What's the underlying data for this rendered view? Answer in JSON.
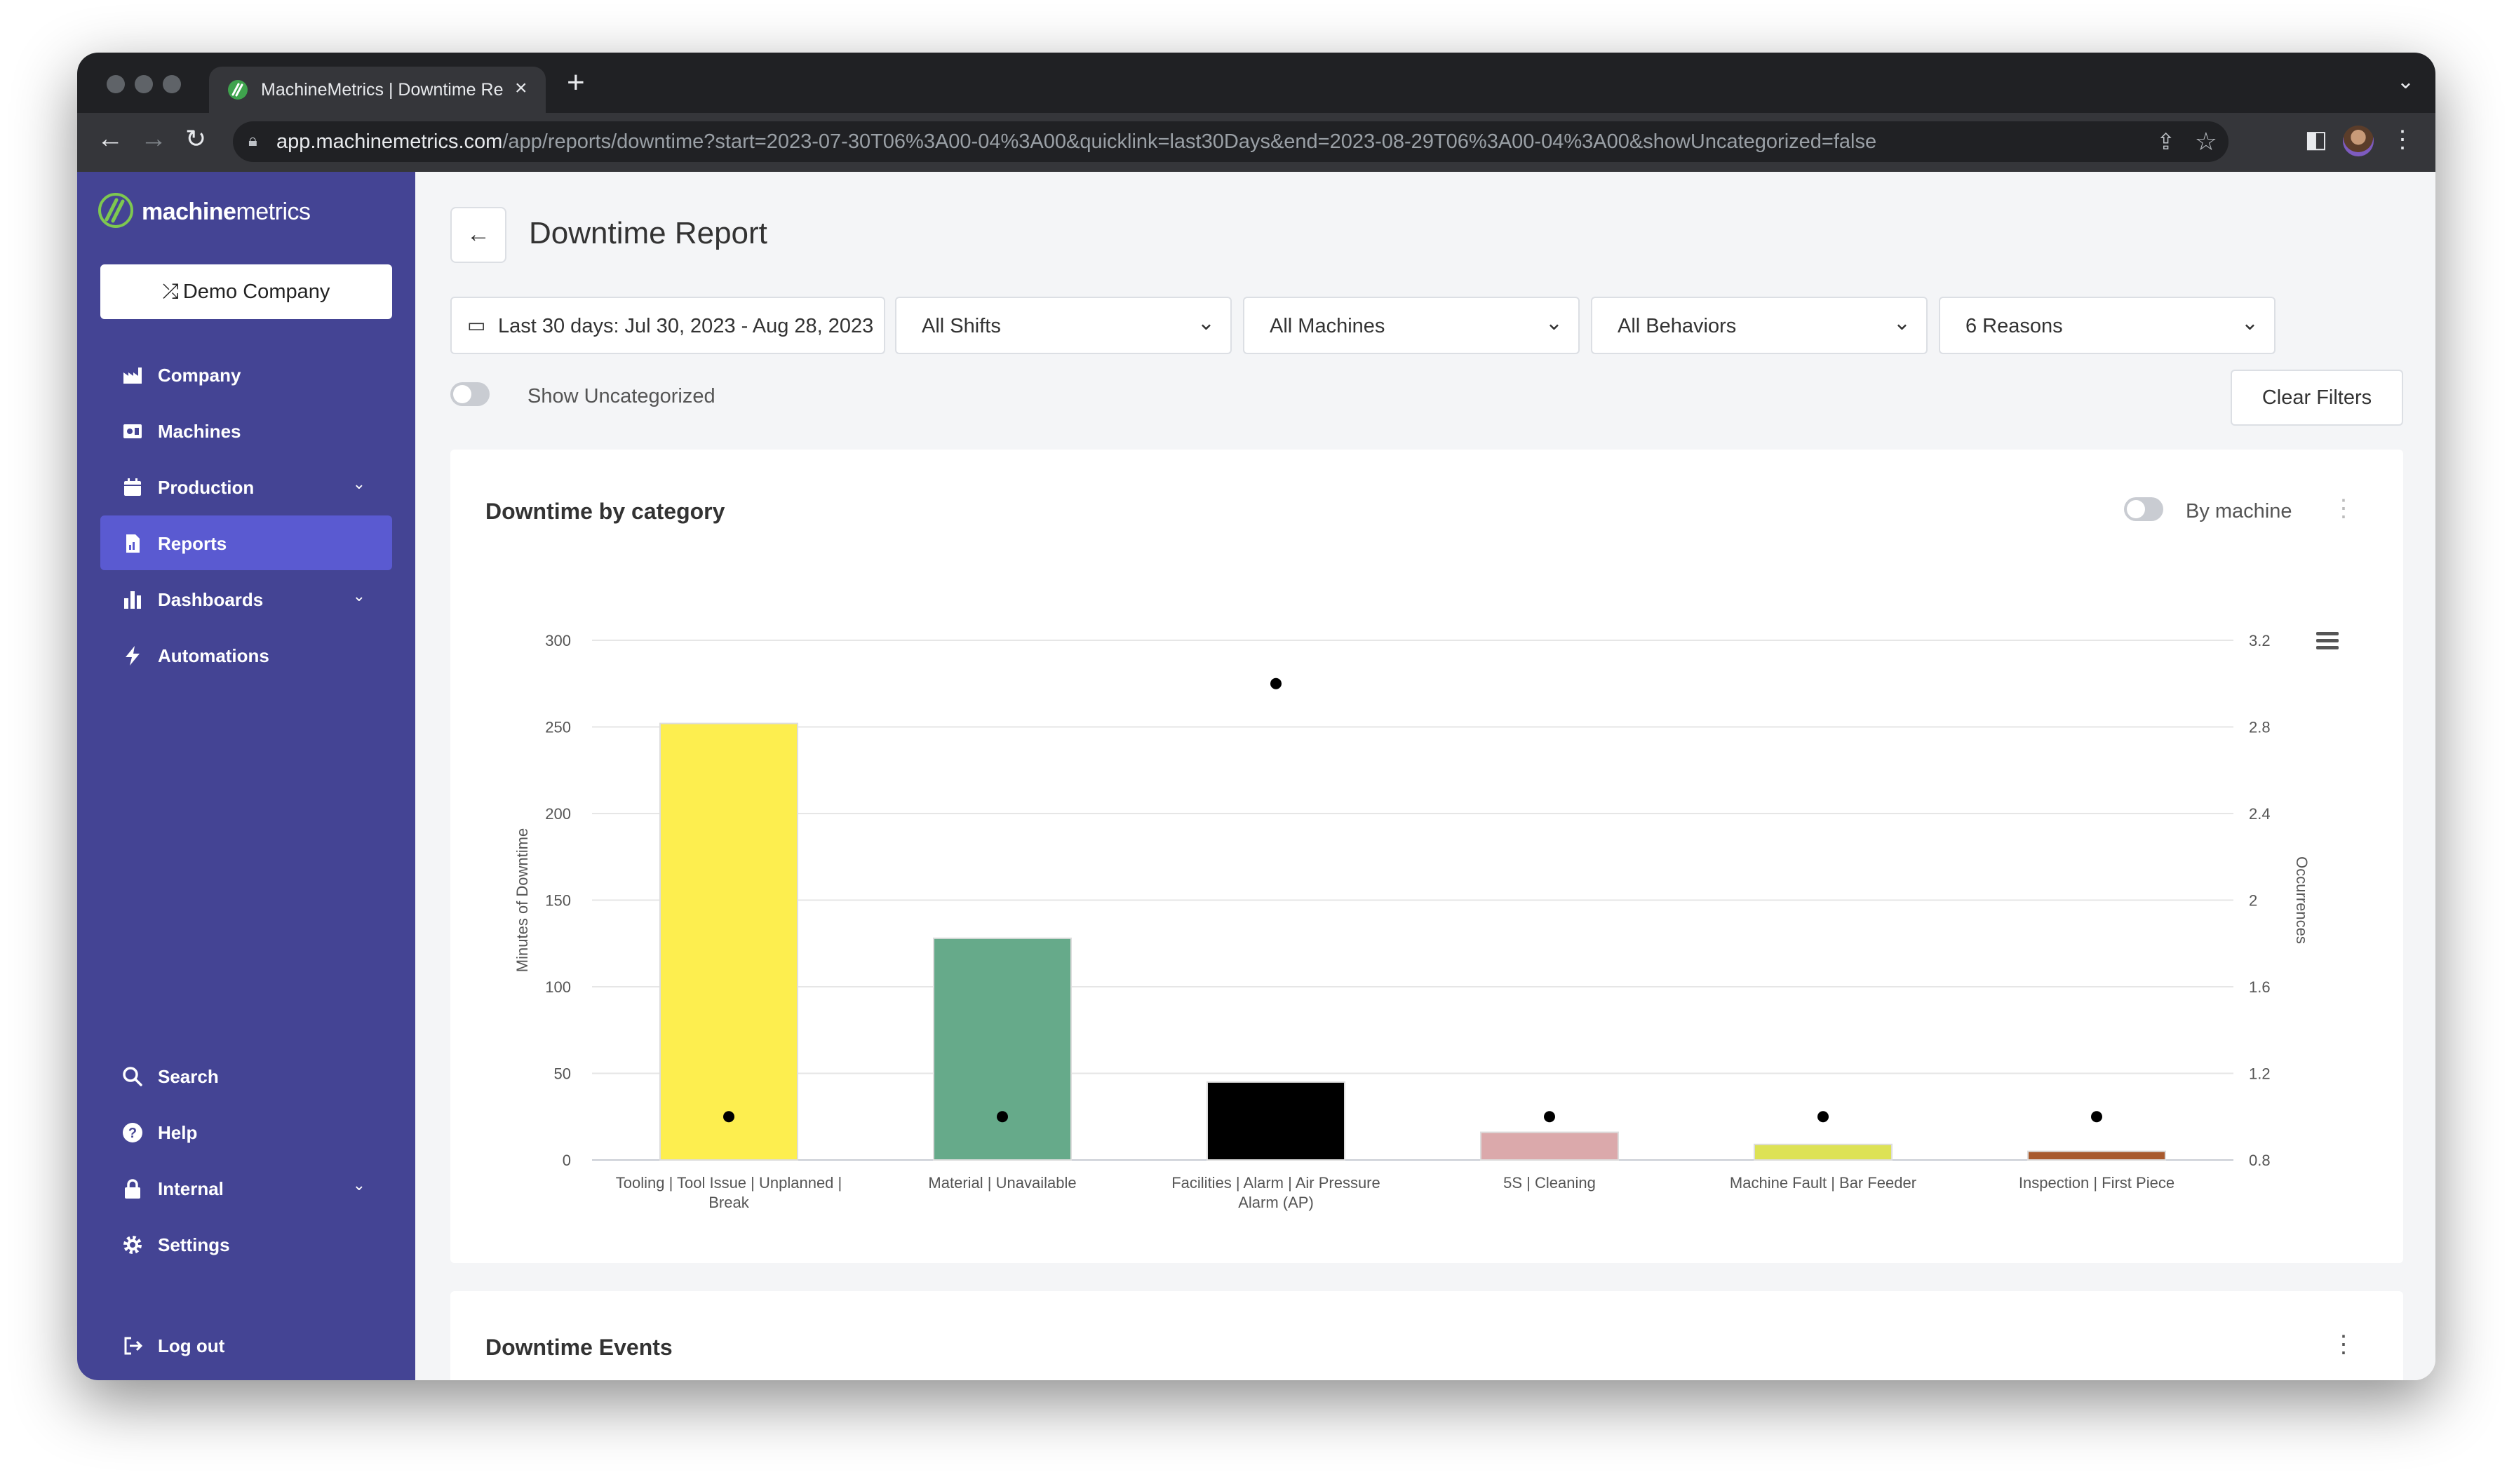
{
  "browser": {
    "tab_title": "MachineMetrics | Downtime Re",
    "url_host": "app.machinemetrics.com",
    "url_path": "/app/reports/downtime?start=2023-07-30T06%3A00-04%3A00&quicklink=last30Days&end=2023-08-29T06%3A00-04%3A00&showUncategorized=false"
  },
  "sidebar": {
    "logo_prefix": "machine",
    "logo_suffix": "metrics",
    "company_button": "Demo Company",
    "items": [
      {
        "label": "Company",
        "icon": "factory-icon"
      },
      {
        "label": "Machines",
        "icon": "machine-icon"
      },
      {
        "label": "Production",
        "icon": "calendar-icon",
        "expandable": true
      },
      {
        "label": "Reports",
        "icon": "report-icon",
        "active": true
      },
      {
        "label": "Dashboards",
        "icon": "bar-chart-icon",
        "expandable": true
      },
      {
        "label": "Automations",
        "icon": "lightning-icon"
      }
    ],
    "bottom_items": [
      {
        "label": "Search",
        "icon": "search-icon"
      },
      {
        "label": "Help",
        "icon": "help-icon"
      },
      {
        "label": "Internal",
        "icon": "lock-icon",
        "expandable": true
      },
      {
        "label": "Settings",
        "icon": "gear-icon"
      }
    ],
    "logout": "Log out"
  },
  "page": {
    "title": "Downtime Report",
    "filters": {
      "date_range": "Last 30 days: Jul 30, 2023 - Aug 28, 2023",
      "shifts": "All Shifts",
      "machines": "All Machines",
      "behaviors": "All Behaviors",
      "reasons": "6 Reasons"
    },
    "show_uncategorized_label": "Show Uncategorized",
    "show_uncategorized": false,
    "clear_filters": "Clear Filters",
    "chart_card_title": "Downtime by category",
    "by_machine_label": "By machine",
    "by_machine": false,
    "events_card_title": "Downtime Events"
  },
  "chart_data": {
    "type": "bar",
    "categories": [
      "Tooling | Tool Issue | Unplanned | Break",
      "Material | Unavailable",
      "Facilities | Alarm | Air Pressure Alarm (AP)",
      "5S | Cleaning",
      "Machine Fault | Bar Feeder",
      "Inspection | First Piece"
    ],
    "category_lines": [
      [
        "Tooling | Tool Issue | Unplanned |",
        "Break"
      ],
      [
        "Material | Unavailable"
      ],
      [
        "Facilities | Alarm | Air Pressure",
        "Alarm (AP)"
      ],
      [
        "5S | Cleaning"
      ],
      [
        "Machine Fault | Bar Feeder"
      ],
      [
        "Inspection | First Piece"
      ]
    ],
    "series": [
      {
        "name": "Minutes of Downtime",
        "axis": "left",
        "values": [
          252,
          128,
          45,
          16,
          9,
          5
        ],
        "colors": [
          "#fdee4f",
          "#66aa8a",
          "#000000",
          "#dba9ab",
          "#dde255",
          "#a85a2e"
        ]
      },
      {
        "name": "Occurrences",
        "axis": "right",
        "style": "dot",
        "values": [
          1,
          1,
          3,
          1,
          1,
          1
        ]
      }
    ],
    "ylabel": "Minutes of Downtime",
    "ylim": [
      0,
      300
    ],
    "yticks": [
      0,
      50,
      100,
      150,
      200,
      250,
      300
    ],
    "y2label": "Occurrences",
    "y2lim": [
      0.8,
      3.2
    ],
    "y2ticks": [
      "0.8",
      "1.2",
      "1.6",
      "2",
      "2.4",
      "2.8",
      "3.2"
    ],
    "grid": true
  }
}
